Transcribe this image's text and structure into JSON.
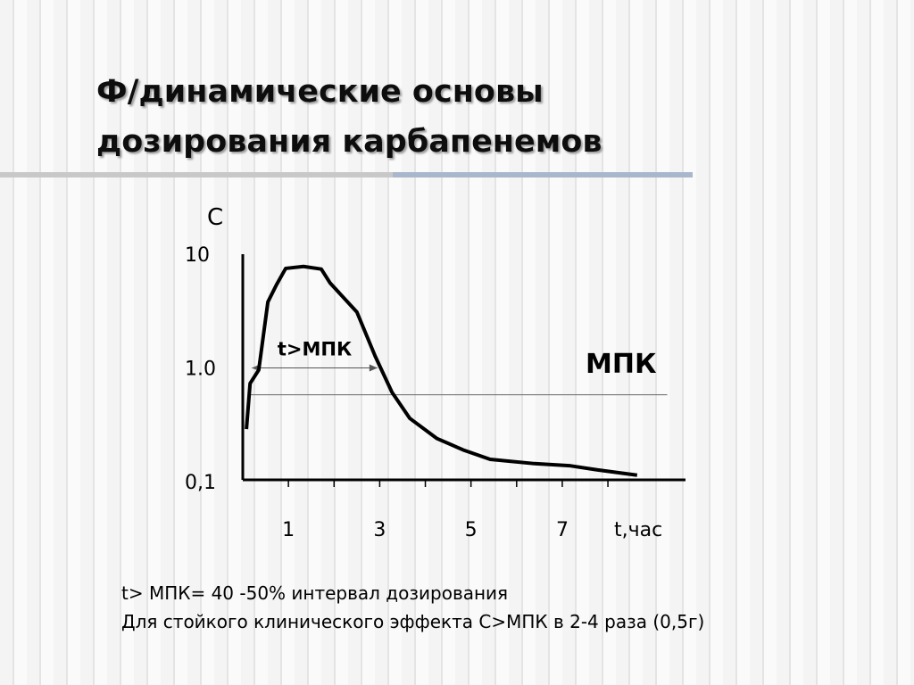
{
  "title": [
    "Ф/динамические основы",
    "дозирования карбапенемов"
  ],
  "chart_data": {
    "type": "line",
    "ylabel": "С",
    "xlabel": "t,час",
    "x": [
      0.08,
      0.16,
      0.35,
      0.55,
      0.74,
      0.94,
      1.33,
      1.72,
      1.91,
      2.5,
      2.9,
      3.27,
      3.66,
      4.25,
      4.83,
      5.42,
      6.39,
      7.17,
      7.76,
      8.64
    ],
    "series": [
      {
        "color": "#000000",
        "values": [
          0.29,
          0.73,
          0.96,
          3.8,
          5.4,
          7.5,
          7.8,
          7.4,
          5.6,
          3.1,
          1.27,
          0.61,
          0.36,
          0.24,
          0.19,
          0.157,
          0.144,
          0.138,
          0.127,
          0.114
        ]
      }
    ],
    "xlim": [
      0,
      9.7
    ],
    "xticks": [
      1,
      3,
      5,
      7
    ],
    "xminorticks": [
      2,
      4,
      6,
      8
    ],
    "ylim": [
      0.1,
      10
    ],
    "ylog": true,
    "yticks": [
      10,
      {
        "value": 1,
        "label": "1.0"
      },
      {
        "value": 0.1,
        "label": "0,1"
      }
    ],
    "threshold": {
      "label": "МПК",
      "value": 0.58,
      "from": 0.16,
      "to": 9.3
    },
    "interval": {
      "label": "t>МПК",
      "from": 0.2,
      "to": 2.95,
      "level": 1.0
    }
  },
  "notes": [
    "t> МПК= 40 -50% интервал дозирования",
    "Для стойкого клинического эффекта С>МПК в 2-4 раза (0,5г)"
  ]
}
